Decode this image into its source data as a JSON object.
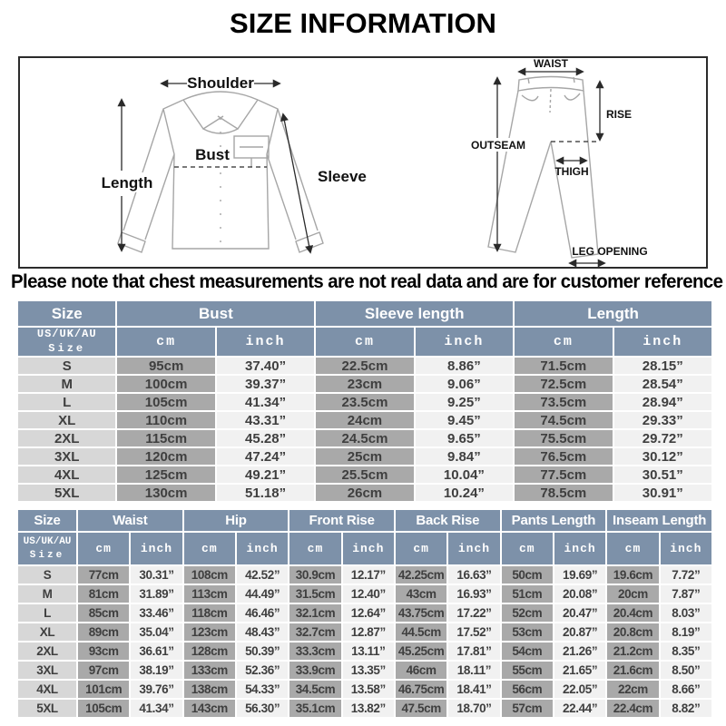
{
  "page": {
    "title": "SIZE INFORMATION",
    "note": "Please note that chest measurements are not real data and are for customer reference only."
  },
  "colors": {
    "header_bg": "#7D91A9",
    "size_col_bg": "#D7D7D7",
    "cm_col_bg": "#A9A9A9",
    "inch_col_bg": "#F1F1F1",
    "sketch_stroke": "#A6A6A6"
  },
  "diagrams": {
    "shirt": {
      "shoulder": "Shoulder",
      "length": "Length",
      "bust": "Bust",
      "sleeve": "Sleeve"
    },
    "pants": {
      "waist": "WAIST",
      "rise": "RISE",
      "outseam": "OUTSEAM",
      "thigh": "THIGH",
      "leg_opening": "LEG OPENING"
    }
  },
  "top_table": {
    "corner_label": "Size",
    "size_header": [
      "US/UK/AU",
      "Size"
    ],
    "groups": [
      "Bust",
      "Sleeve length",
      "Length"
    ],
    "units": {
      "cm": "cm",
      "inch": "inch"
    },
    "rows": [
      {
        "size": "S",
        "values": [
          "95cm",
          "37.40”",
          "22.5cm",
          "8.86”",
          "71.5cm",
          "28.15”"
        ]
      },
      {
        "size": "M",
        "values": [
          "100cm",
          "39.37”",
          "23cm",
          "9.06”",
          "72.5cm",
          "28.54”"
        ]
      },
      {
        "size": "L",
        "values": [
          "105cm",
          "41.34”",
          "23.5cm",
          "9.25”",
          "73.5cm",
          "28.94”"
        ]
      },
      {
        "size": "XL",
        "values": [
          "110cm",
          "43.31”",
          "24cm",
          "9.45”",
          "74.5cm",
          "29.33”"
        ]
      },
      {
        "size": "2XL",
        "values": [
          "115cm",
          "45.28”",
          "24.5cm",
          "9.65”",
          "75.5cm",
          "29.72”"
        ]
      },
      {
        "size": "3XL",
        "values": [
          "120cm",
          "47.24”",
          "25cm",
          "9.84”",
          "76.5cm",
          "30.12”"
        ]
      },
      {
        "size": "4XL",
        "values": [
          "125cm",
          "49.21”",
          "25.5cm",
          "10.04”",
          "77.5cm",
          "30.51”"
        ]
      },
      {
        "size": "5XL",
        "values": [
          "130cm",
          "51.18”",
          "26cm",
          "10.24”",
          "78.5cm",
          "30.91”"
        ]
      }
    ]
  },
  "bottom_table": {
    "corner_label": "Size",
    "size_header": [
      "US/UK/AU",
      "Size"
    ],
    "groups": [
      "Waist",
      "Hip",
      "Front Rise",
      "Back Rise",
      "Pants Length",
      "Inseam Length"
    ],
    "units": {
      "cm": "cm",
      "inch": "inch"
    },
    "rows": [
      {
        "size": "S",
        "values": [
          "77cm",
          "30.31”",
          "108cm",
          "42.52”",
          "30.9cm",
          "12.17”",
          "42.25cm",
          "16.63”",
          "50cm",
          "19.69”",
          "19.6cm",
          "7.72”"
        ]
      },
      {
        "size": "M",
        "values": [
          "81cm",
          "31.89”",
          "113cm",
          "44.49”",
          "31.5cm",
          "12.40”",
          "43cm",
          "16.93”",
          "51cm",
          "20.08”",
          "20cm",
          "7.87”"
        ]
      },
      {
        "size": "L",
        "values": [
          "85cm",
          "33.46”",
          "118cm",
          "46.46”",
          "32.1cm",
          "12.64”",
          "43.75cm",
          "17.22”",
          "52cm",
          "20.47”",
          "20.4cm",
          "8.03”"
        ]
      },
      {
        "size": "XL",
        "values": [
          "89cm",
          "35.04”",
          "123cm",
          "48.43”",
          "32.7cm",
          "12.87”",
          "44.5cm",
          "17.52”",
          "53cm",
          "20.87”",
          "20.8cm",
          "8.19”"
        ]
      },
      {
        "size": "2XL",
        "values": [
          "93cm",
          "36.61”",
          "128cm",
          "50.39”",
          "33.3cm",
          "13.11”",
          "45.25cm",
          "17.81”",
          "54cm",
          "21.26”",
          "21.2cm",
          "8.35”"
        ]
      },
      {
        "size": "3XL",
        "values": [
          "97cm",
          "38.19”",
          "133cm",
          "52.36”",
          "33.9cm",
          "13.35”",
          "46cm",
          "18.11”",
          "55cm",
          "21.65”",
          "21.6cm",
          "8.50”"
        ]
      },
      {
        "size": "4XL",
        "values": [
          "101cm",
          "39.76”",
          "138cm",
          "54.33”",
          "34.5cm",
          "13.58”",
          "46.75cm",
          "18.41”",
          "56cm",
          "22.05”",
          "22cm",
          "8.66”"
        ]
      },
      {
        "size": "5XL",
        "values": [
          "105cm",
          "41.34”",
          "143cm",
          "56.30”",
          "35.1cm",
          "13.82”",
          "47.5cm",
          "18.70”",
          "57cm",
          "22.44”",
          "22.4cm",
          "8.82”"
        ]
      }
    ]
  }
}
